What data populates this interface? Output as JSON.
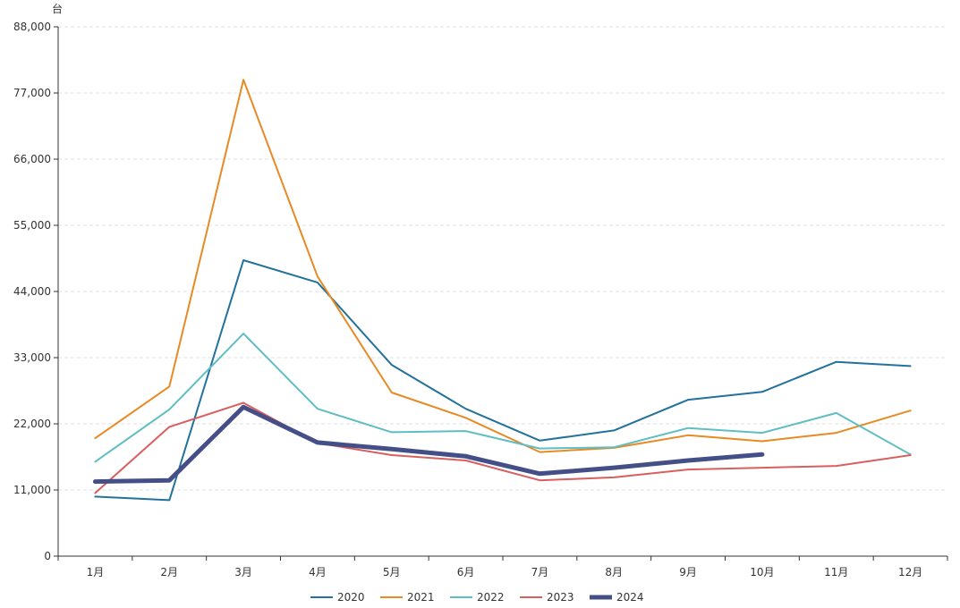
{
  "chart_data": {
    "type": "line",
    "title": "",
    "xlabel": "",
    "ylabel": "台",
    "ylim": [
      0,
      88000
    ],
    "yticks": [
      0,
      11000,
      22000,
      33000,
      44000,
      55000,
      66000,
      77000,
      88000
    ],
    "ytick_labels": [
      "0",
      "11,000",
      "22,000",
      "33,000",
      "44,000",
      "55,000",
      "66,000",
      "77,000",
      "88,000"
    ],
    "grid": "horizontal dashed",
    "legend_position": "bottom-center",
    "categories": [
      "1月",
      "2月",
      "3月",
      "4月",
      "5月",
      "6月",
      "7月",
      "8月",
      "9月",
      "10月",
      "11月",
      "12月"
    ],
    "series": [
      {
        "name": "2020",
        "color": "#23729c",
        "emphasis": false,
        "values": [
          9900,
          9300,
          49200,
          45500,
          31800,
          24500,
          19200,
          20900,
          26000,
          27300,
          32300,
          31600
        ]
      },
      {
        "name": "2021",
        "color": "#e88a24",
        "emphasis": false,
        "values": [
          19600,
          28200,
          79200,
          46500,
          27200,
          23000,
          17300,
          18000,
          20100,
          19100,
          20500,
          24200
        ]
      },
      {
        "name": "2022",
        "color": "#5fbec2",
        "emphasis": false,
        "values": [
          15700,
          24400,
          37000,
          24500,
          20600,
          20800,
          17900,
          18100,
          21300,
          20500,
          23800,
          16900
        ]
      },
      {
        "name": "2023",
        "color": "#d95f5f",
        "emphasis": false,
        "values": [
          10500,
          21500,
          25500,
          18800,
          16800,
          15900,
          12600,
          13100,
          14400,
          14700,
          15000,
          16800
        ]
      },
      {
        "name": "2024",
        "color": "#454f87",
        "emphasis": true,
        "values": [
          12400,
          12600,
          24800,
          18900,
          17800,
          16600,
          13700,
          14700,
          15900,
          16900,
          null,
          null
        ]
      }
    ]
  }
}
